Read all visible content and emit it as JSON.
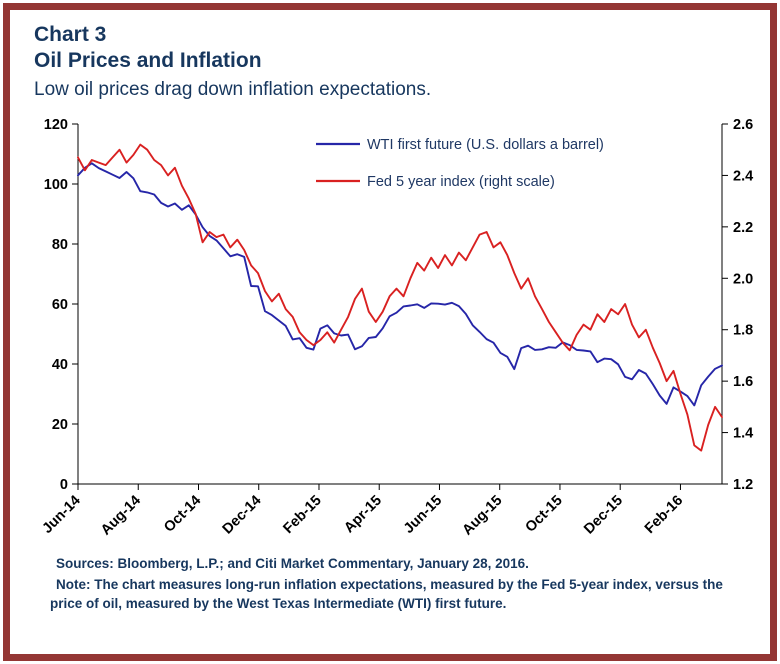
{
  "header": {
    "chart_number": "Chart 3",
    "title": "Oil Prices and Inflation",
    "subtitle": "Low oil prices drag down inflation expectations."
  },
  "footer": {
    "sources": "Sources: Bloomberg, L.P.; and Citi Market Commentary, January 28, 2016.",
    "note": "Note: The chart measures long-run inflation expectations, measured by the Fed 5-year index, versus the price of oil, measured by the West Texas Intermediate (WTI) first future."
  },
  "colors": {
    "frame": "#943634",
    "navy_text": "#17375E",
    "axis_text": "#000000",
    "legend_text": "#1F3864",
    "wti_line": "#2626A8",
    "fed_line": "#D92121"
  },
  "chart_data": {
    "type": "line",
    "title": "Oil Prices and Inflation",
    "x_tick_labels": [
      "Jun-14",
      "Aug-14",
      "Oct-14",
      "Dec-14",
      "Feb-15",
      "Apr-15",
      "Jun-15",
      "Aug-15",
      "Oct-15",
      "Dec-15",
      "Feb-16"
    ],
    "x_tick_positions": [
      0,
      8.7,
      17.4,
      26.1,
      34.8,
      43.5,
      52.2,
      60.9,
      69.6,
      78.3,
      87.0
    ],
    "left_axis": {
      "label": "",
      "min": 0,
      "max": 120,
      "ticks": [
        0,
        20,
        40,
        60,
        80,
        100,
        120
      ]
    },
    "right_axis": {
      "label": "",
      "min": 1.2,
      "max": 2.6,
      "ticks": [
        1.2,
        1.4,
        1.6,
        1.8,
        2.0,
        2.2,
        2.4,
        2.6
      ]
    },
    "grid": false,
    "legend_position": "inside-top-center",
    "legend": [
      {
        "label": "WTI first future (U.S. dollars a barrel)",
        "series": "wti"
      },
      {
        "label": "Fed 5 year index (right scale)",
        "series": "fed"
      }
    ],
    "series": [
      {
        "name": "WTI first future (U.S. dollars a barrel)",
        "axis": "left",
        "color_key": "wti_line",
        "values": [
          102.9,
          105.4,
          106.9,
          105.3,
          104.2,
          103.1,
          102.0,
          104.0,
          101.9,
          97.6,
          97.2,
          96.5,
          93.7,
          92.5,
          93.5,
          91.4,
          92.9,
          89.8,
          85.6,
          82.7,
          81.2,
          78.6,
          75.9,
          76.6,
          75.7,
          66.0,
          65.9,
          57.6,
          56.3,
          54.5,
          52.7,
          48.2,
          48.6,
          45.4,
          44.8,
          51.8,
          52.9,
          50.2,
          49.5,
          49.8,
          44.9,
          45.9,
          48.7,
          49.0,
          51.9,
          55.9,
          57.1,
          59.2,
          59.5,
          59.9,
          58.7,
          60.2,
          60.1,
          59.8,
          60.4,
          59.3,
          56.7,
          52.9,
          50.7,
          48.3,
          47.1,
          43.7,
          42.4,
          38.3,
          45.3,
          46.1,
          44.7,
          44.9,
          45.6,
          45.4,
          47.2,
          46.3,
          44.7,
          44.5,
          44.2,
          40.6,
          41.8,
          41.6,
          39.9,
          35.7,
          34.9,
          38.0,
          36.8,
          33.3,
          29.5,
          26.7,
          32.2,
          30.8,
          29.3,
          26.2,
          32.9,
          35.8,
          38.4,
          39.5
        ]
      },
      {
        "name": "Fed 5 year index (right scale)",
        "axis": "right",
        "color_key": "fed_line",
        "values": [
          2.47,
          2.42,
          2.46,
          2.45,
          2.44,
          2.47,
          2.5,
          2.45,
          2.48,
          2.52,
          2.5,
          2.46,
          2.44,
          2.4,
          2.43,
          2.36,
          2.31,
          2.25,
          2.14,
          2.18,
          2.16,
          2.17,
          2.12,
          2.15,
          2.11,
          2.05,
          2.02,
          1.95,
          1.91,
          1.94,
          1.88,
          1.85,
          1.79,
          1.76,
          1.74,
          1.76,
          1.79,
          1.75,
          1.8,
          1.85,
          1.92,
          1.96,
          1.87,
          1.83,
          1.87,
          1.93,
          1.96,
          1.93,
          2.0,
          2.06,
          2.03,
          2.08,
          2.04,
          2.09,
          2.05,
          2.1,
          2.07,
          2.12,
          2.17,
          2.18,
          2.12,
          2.14,
          2.09,
          2.02,
          1.96,
          2.0,
          1.93,
          1.88,
          1.83,
          1.79,
          1.75,
          1.72,
          1.78,
          1.82,
          1.8,
          1.86,
          1.83,
          1.88,
          1.86,
          1.9,
          1.82,
          1.77,
          1.8,
          1.73,
          1.67,
          1.6,
          1.64,
          1.55,
          1.47,
          1.35,
          1.33,
          1.43,
          1.5,
          1.46
        ]
      }
    ]
  }
}
